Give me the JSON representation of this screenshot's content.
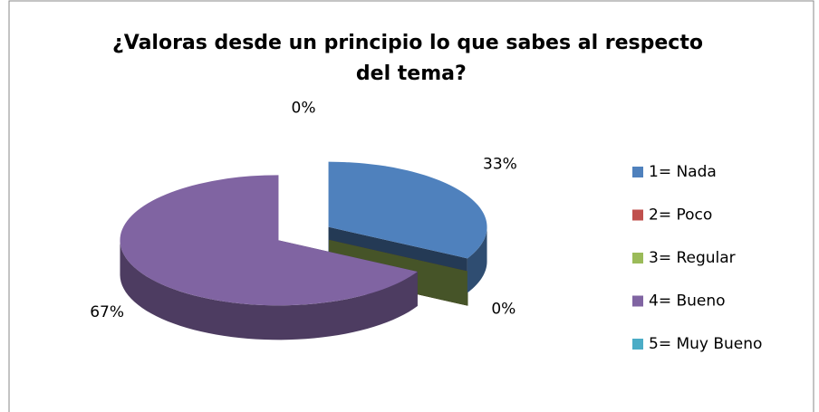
{
  "chart_data": {
    "type": "pie3d",
    "title": "¿Valoras desde un principio lo que sabes al respecto del tema?",
    "categories": [
      "1= Nada",
      "2= Poco",
      "3= Regular",
      "4= Bueno",
      "5= Muy Bueno"
    ],
    "values": [
      33,
      0,
      0,
      67,
      0
    ],
    "value_labels": [
      "33%",
      null,
      "0%",
      "67%",
      "0%"
    ],
    "colors": [
      "#4f81bd",
      "#c0504d",
      "#9bbb59",
      "#8064a2",
      "#4bacc6"
    ],
    "legend": "right"
  }
}
